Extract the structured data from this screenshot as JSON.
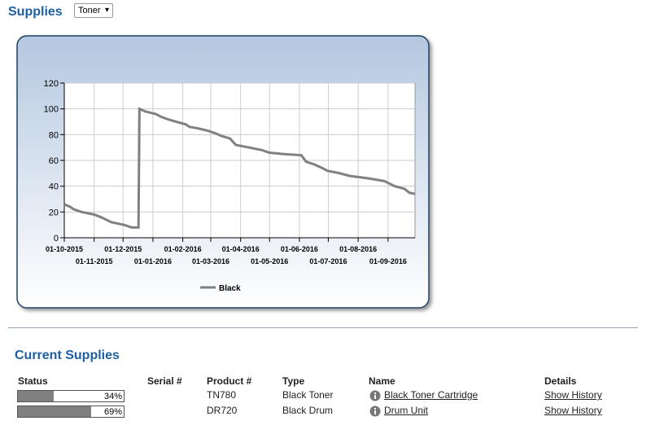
{
  "header": {
    "title": "Supplies",
    "selector": "Toner"
  },
  "chart_data": {
    "type": "line",
    "x": [
      "01-10-2015",
      "07-10-2015",
      "11-10-2015",
      "19-10-2015",
      "01-11-2015",
      "08-11-2015",
      "19-11-2015",
      "02-12-2015",
      "10-12-2015",
      "17-12-2015",
      "18-12-2015",
      "24-12-2015",
      "04-01-2016",
      "09-01-2016",
      "16-01-2016",
      "25-01-2016",
      "04-02-2016",
      "08-02-2016",
      "16-02-2016",
      "27-02-2016",
      "06-03-2016",
      "12-03-2016",
      "21-03-2016",
      "27-03-2016",
      "10-04-2016",
      "23-04-2016",
      "01-05-2016",
      "15-05-2016",
      "03-06-2016",
      "08-06-2016",
      "16-06-2016",
      "25-06-2016",
      "30-06-2016",
      "13-07-2016",
      "23-07-2016",
      "12-08-2016",
      "28-08-2016",
      "08-09-2016",
      "18-09-2016",
      "23-09-2016",
      "29-09-2016"
    ],
    "series": [
      {
        "name": "Black",
        "color": "#808080",
        "values": [
          26,
          24,
          22,
          20,
          18,
          16,
          12,
          10,
          8,
          8,
          100,
          98,
          96,
          94,
          92,
          90,
          88,
          86,
          85,
          83,
          81,
          79,
          77,
          72,
          70,
          68,
          66,
          65,
          64,
          59,
          57,
          54,
          52,
          50,
          48,
          46,
          44,
          40,
          38,
          35,
          34
        ]
      }
    ],
    "xlim": [
      "01-10-2015",
      "29-09-2016"
    ],
    "xticks": [
      "01-10-2015",
      "01-11-2015",
      "01-12-2015",
      "01-01-2016",
      "01-02-2016",
      "01-03-2016",
      "01-04-2016",
      "01-05-2016",
      "01-06-2016",
      "01-07-2016",
      "01-08-2016",
      "01-09-2016"
    ],
    "ylim": [
      0,
      120
    ],
    "yticks": [
      0,
      20,
      40,
      60,
      80,
      100,
      120
    ],
    "grid": true,
    "legend": "bottom"
  },
  "current": {
    "title": "Current Supplies",
    "columns": [
      "Status",
      "Serial #",
      "Product #",
      "Type",
      "Name",
      "Details"
    ],
    "rows": [
      {
        "status": {
          "value": 34,
          "label": "34%"
        },
        "product": "TN780",
        "type": "Black Toner",
        "name": "Black Toner Cartridge",
        "details": "Show History"
      },
      {
        "status": {
          "value": 69,
          "label": "69%"
        },
        "product": "DR720",
        "type": "Black Drum",
        "name": "Drum Unit",
        "details": "Show History"
      }
    ]
  }
}
